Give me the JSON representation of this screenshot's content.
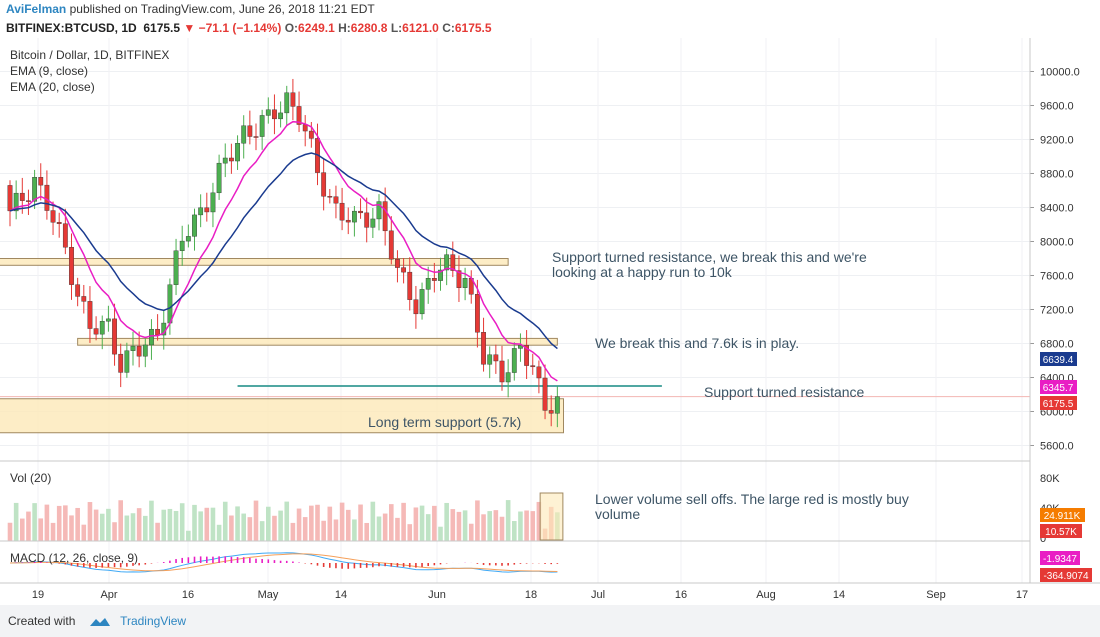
{
  "header": {
    "author": "AviFelman",
    "published": "published on TradingView.com, June 26, 2018 11:21 EDT",
    "symbol": "BITFINEX:BTCUSD, 1D",
    "last": "6175.5",
    "change_arrow": "▼",
    "change": "−71.1 (−1.14%)",
    "o_label": "O:",
    "o": "6249.1",
    "h_label": "H:",
    "h": "6280.8",
    "l_label": "L:",
    "l": "6121.0",
    "c_label": "C:",
    "c": "6175.5"
  },
  "legend": {
    "title": "Bitcoin / Dollar, 1D, BITFINEX",
    "ema9": "EMA (9, close)",
    "ema20": "EMA (20, close)",
    "vol": "Vol (20)",
    "macd": "MACD (12, 26, close, 9)"
  },
  "footer": {
    "created_with": "Created with",
    "brand": "TradingView"
  },
  "colors": {
    "up": "#4caf50",
    "down": "#e53935",
    "ema9": "#e91ec4",
    "ema20": "#1a3b8f",
    "zone_fill": "#fde9b8",
    "zone_stroke": "#a08860",
    "teal": "#178a83",
    "annot": "#3e5566"
  },
  "annotations": {
    "a1_line1": "Support turned resistance, we break this and we're",
    "a1_line2": "looking at a happy run to 10k",
    "a2": "We break this and 7.6k is in play.",
    "a3": "Support turned resistance",
    "a4": "Long term support (5.7k)",
    "a5_line1": "Lower volume sell offs. The large red is mostly buy",
    "a5_line2": "volume"
  },
  "badges": {
    "ema20": "6639.4",
    "ema9": "6345.7",
    "last": "6175.5",
    "vol_ma": "24.911K",
    "vol": "10.57K",
    "macd_a": "-1.9347",
    "macd_b": "-364.9074"
  },
  "chart_data": {
    "type": "candlestick",
    "title": "Bitcoin / Dollar, 1D, BITFINEX",
    "y_ticks": [
      10000.0,
      9600.0,
      9200.0,
      8800.0,
      8400.0,
      8000.0,
      7600.0,
      7200.0,
      6800.0,
      6400.0,
      6000.0,
      5600.0
    ],
    "ylim": [
      5500,
      10300
    ],
    "x_ticks": [
      "19",
      "Apr",
      "16",
      "May",
      "14",
      "Jun",
      "18",
      "Jul",
      "16",
      "Aug",
      "14",
      "Sep",
      "17"
    ],
    "close_anchors": [
      {
        "day": 0,
        "price": 8300
      },
      {
        "day": 4,
        "price": 8750
      },
      {
        "day": 9,
        "price": 7900
      },
      {
        "day": 13,
        "price": 6950
      },
      {
        "day": 16,
        "price": 7000
      },
      {
        "day": 18,
        "price": 6600
      },
      {
        "day": 21,
        "price": 6700
      },
      {
        "day": 24,
        "price": 6950
      },
      {
        "day": 28,
        "price": 8000
      },
      {
        "day": 32,
        "price": 8500
      },
      {
        "day": 35,
        "price": 8900
      },
      {
        "day": 38,
        "price": 9300
      },
      {
        "day": 42,
        "price": 9400
      },
      {
        "day": 45,
        "price": 9700
      },
      {
        "day": 47,
        "price": 9500
      },
      {
        "day": 50,
        "price": 8800
      },
      {
        "day": 53,
        "price": 8400
      },
      {
        "day": 56,
        "price": 8200
      },
      {
        "day": 60,
        "price": 8400
      },
      {
        "day": 63,
        "price": 7600
      },
      {
        "day": 66,
        "price": 7300
      },
      {
        "day": 69,
        "price": 7600
      },
      {
        "day": 71,
        "price": 7700
      },
      {
        "day": 74,
        "price": 7600
      },
      {
        "day": 77,
        "price": 6600
      },
      {
        "day": 80,
        "price": 6500
      },
      {
        "day": 83,
        "price": 6700
      },
      {
        "day": 85,
        "price": 6500
      },
      {
        "day": 87,
        "price": 6100
      },
      {
        "day": 89,
        "price": 6175.5
      }
    ],
    "volume_ylim": [
      0,
      80000
    ],
    "volume_ticks": [
      "80K",
      "40K",
      "0"
    ],
    "zones": [
      {
        "name": "support-turned-resistance",
        "price_low": 7720,
        "price_high": 7800,
        "day_start": -2,
        "day_end": 81
      },
      {
        "name": "break-zone",
        "price_low": 6780,
        "price_high": 6860,
        "day_start": 11,
        "day_end": 89
      },
      {
        "name": "long-term-support",
        "price_low": 5750,
        "price_high": 6150,
        "day_start": -5,
        "day_end": 90
      }
    ],
    "support_line": {
      "price": 6300,
      "day_start": 37,
      "day_end": 106
    }
  }
}
